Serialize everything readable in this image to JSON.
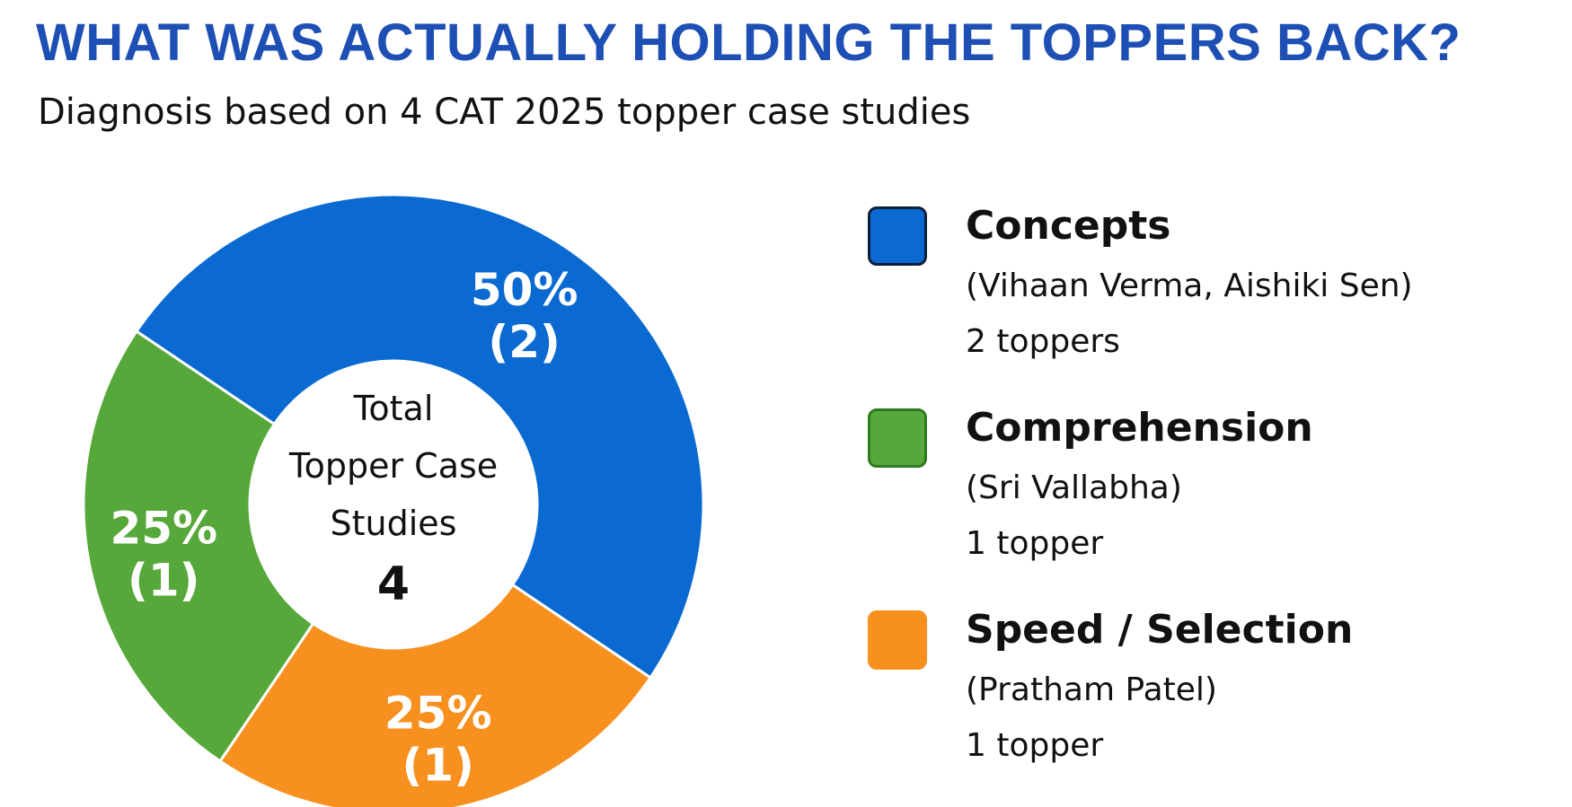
{
  "title": "WHAT WAS ACTUALLY HOLDING THE TOPPERS BACK?",
  "subtitle": "Diagnosis based on 4 CAT 2025 topper case studies",
  "chart_data": {
    "type": "pie",
    "title": "WHAT WAS ACTUALLY HOLDING THE TOPPERS BACK?",
    "subtitle": "Diagnosis based on 4 CAT 2025 topper case studies",
    "donut": true,
    "center_label": {
      "lines": [
        "Total",
        "Topper Case",
        "Studies"
      ],
      "value": "4"
    },
    "slices": [
      {
        "name": "Concepts",
        "value": 2,
        "percent": 50,
        "label_pct": "50%",
        "label_count": "(2)",
        "color": "#0a6ad1",
        "people": "(Vihaan Verma, Aishiki Sen)",
        "count_text": "2 toppers"
      },
      {
        "name": "Speed / Selection",
        "value": 1,
        "percent": 25,
        "label_pct": "25%",
        "label_count": "(1)",
        "color": "#f7901e",
        "people": "(Pratham Patel)",
        "count_text": "1 topper"
      },
      {
        "name": "Comprehension",
        "value": 1,
        "percent": 25,
        "label_pct": "25%",
        "label_count": "(1)",
        "color": "#57a83a",
        "people": "(Sri Vallabha)",
        "count_text": "1 topper"
      }
    ],
    "legend_order": [
      "Concepts",
      "Comprehension",
      "Speed / Selection"
    ],
    "legend_position": "right",
    "swatch_borders": {
      "Concepts": "#0d1f3a",
      "Comprehension": "#2e7a1f",
      "Speed / Selection": "#f7901e"
    }
  }
}
